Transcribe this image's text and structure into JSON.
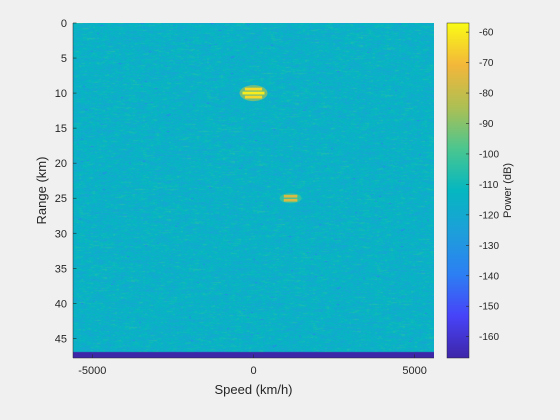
{
  "chart_data": {
    "type": "heatmap",
    "title": "",
    "xlabel": "Speed (km/h)",
    "ylabel": "Range (km)",
    "xlim": [
      -5600,
      5600
    ],
    "ylim": [
      0,
      47.8
    ],
    "y_reversed": true,
    "x_ticks": [
      -5000,
      0,
      5000
    ],
    "x_tick_labels": [
      "-5000",
      "0",
      "5000"
    ],
    "y_ticks": [
      0,
      5,
      10,
      15,
      20,
      25,
      30,
      35,
      40,
      45
    ],
    "y_tick_labels": [
      "0",
      "5",
      "10",
      "15",
      "20",
      "25",
      "30",
      "35",
      "40",
      "45"
    ],
    "colormap": "parula",
    "background_power_db": -115,
    "targets": [
      {
        "speed_kmh": 0,
        "range_km": 10,
        "power_db": -60
      },
      {
        "speed_kmh": 1150,
        "range_km": 25,
        "power_db": -72
      }
    ],
    "bottom_band": {
      "range_km_from": 46.9,
      "range_km_to": 47.8,
      "power_db": -167
    },
    "colorbar": {
      "label": "Power (dB)",
      "min": -167,
      "max": -57,
      "ticks": [
        -60,
        -70,
        -80,
        -90,
        -100,
        -110,
        -120,
        -130,
        -140,
        -150,
        -160
      ],
      "tick_labels": [
        "-60",
        "-70",
        "-80",
        "-90",
        "-100",
        "-110",
        "-120",
        "-130",
        "-140",
        "-150",
        "-160"
      ]
    }
  }
}
